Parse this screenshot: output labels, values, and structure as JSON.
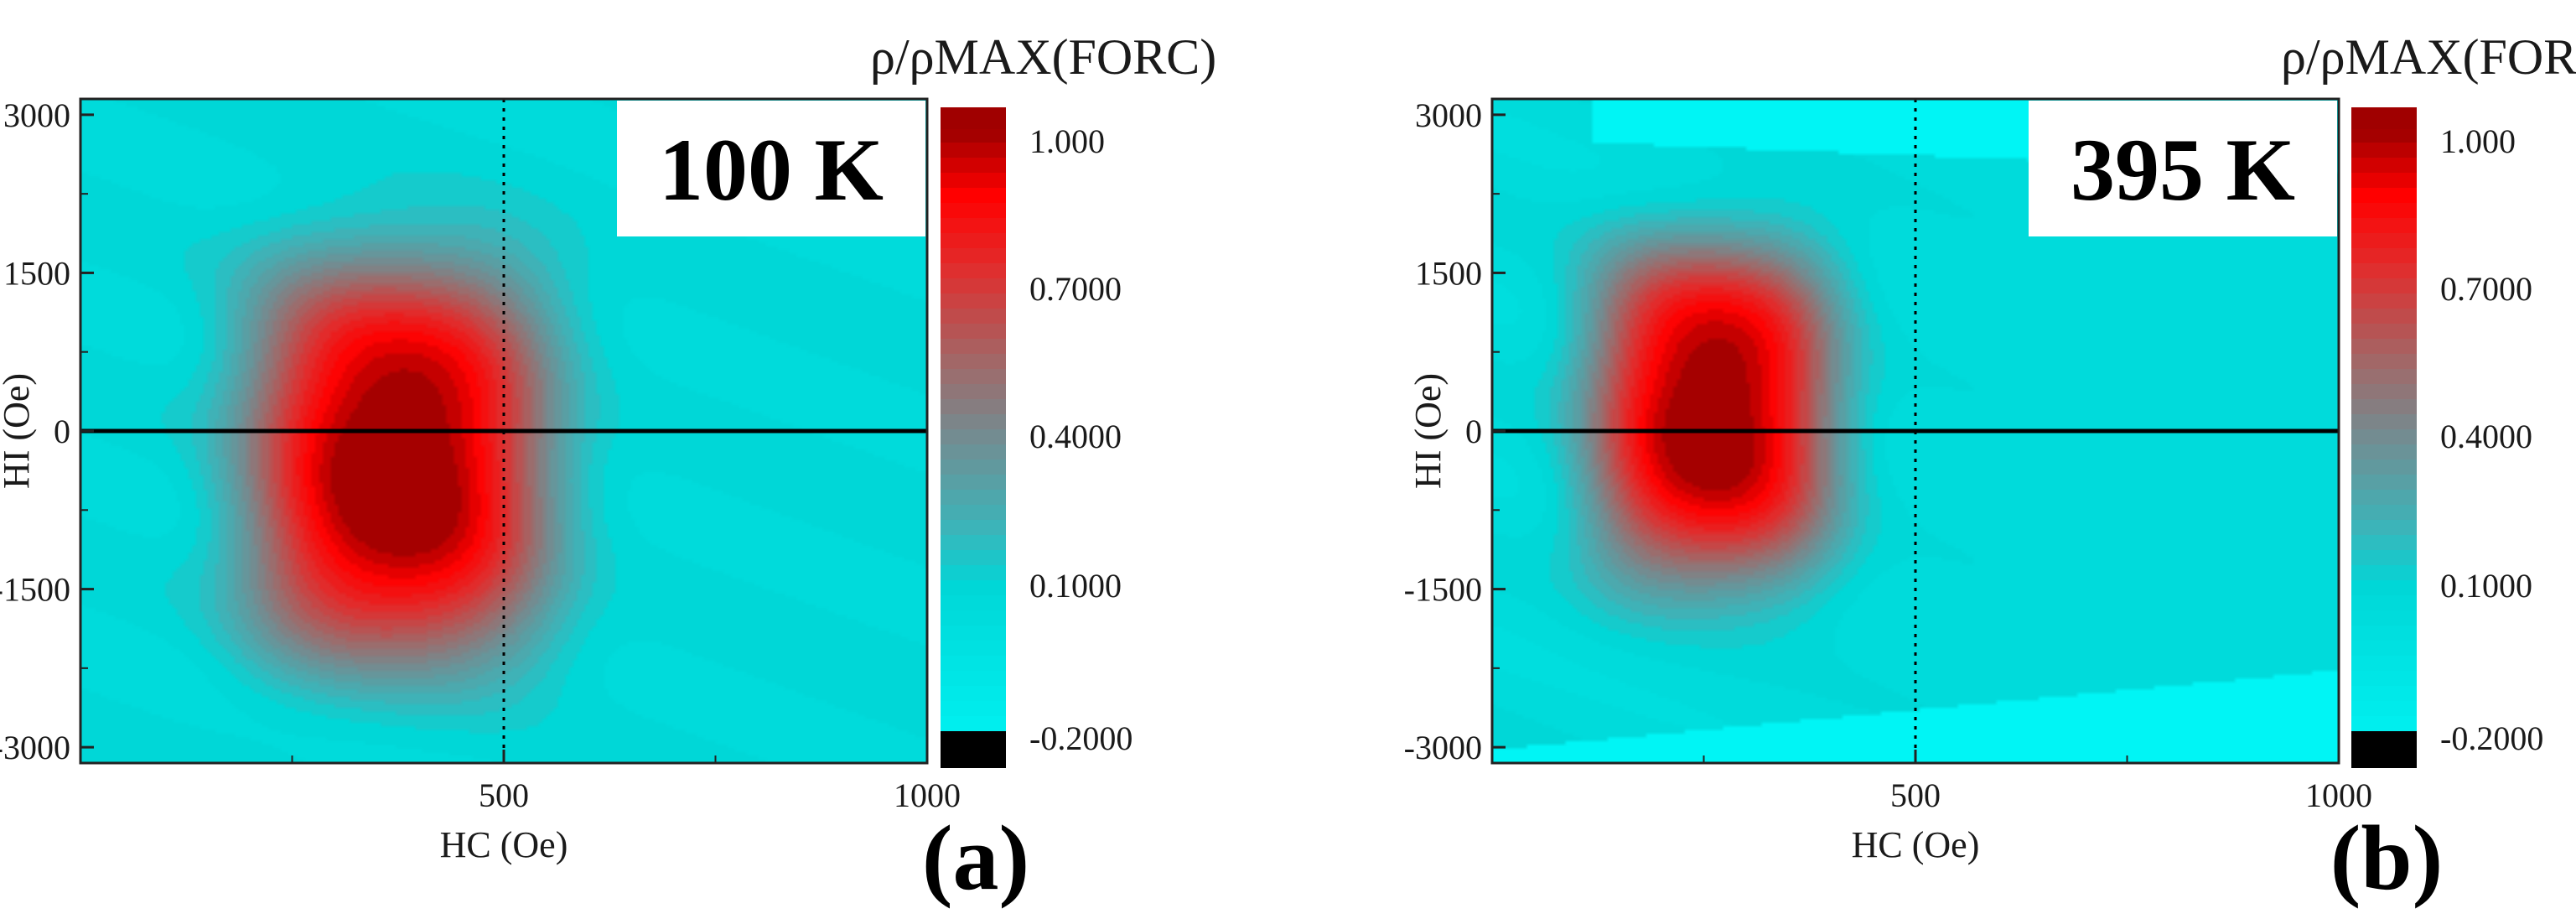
{
  "chart_data": [
    {
      "type": "heatmap",
      "panel_label": "(a)",
      "temperature_label": "100 K",
      "colorbar_title": "ρ/ρMAX(FORC)",
      "xlabel": "HC (Oe)",
      "ylabel": "HI (Oe)",
      "xlim": [
        0,
        1000
      ],
      "ylim": [
        -3150,
        3150
      ],
      "x_ticks": [
        500,
        1000
      ],
      "y_ticks": [
        3000,
        1500,
        0,
        -1500,
        -3000
      ],
      "colorbar_ticks": [
        "1.000",
        "0.7000",
        "0.4000",
        "0.1000",
        "-0.2000"
      ],
      "colorbar_range": [
        -0.2,
        1.0
      ],
      "reference_lines": {
        "horizontal_hi": 0,
        "vertical_hc_dotted": 500
      },
      "peaks": [
        {
          "hc": 375,
          "hi": -350,
          "amplitude": 1.0,
          "sigma_hc": 135,
          "sigma_hi_pos": 1550,
          "sigma_hi_neg": 1450
        }
      ],
      "background_level": 0.08
    },
    {
      "type": "heatmap",
      "panel_label": "(b)",
      "temperature_label": "395 K",
      "colorbar_title": "ρ/ρMAX(FORC)",
      "xlabel": "HC (Oe)",
      "ylabel": "HI (Oe)",
      "xlim": [
        0,
        1000
      ],
      "ylim": [
        -3150,
        3150
      ],
      "x_ticks": [
        500,
        1000
      ],
      "y_ticks": [
        3000,
        1500,
        0,
        -1500,
        -3000
      ],
      "colorbar_ticks": [
        "1.000",
        "0.7000",
        "0.4000",
        "0.1000",
        "-0.2000"
      ],
      "colorbar_range": [
        -0.2,
        1.0
      ],
      "reference_lines": {
        "horizontal_hi": 0,
        "vertical_hc_dotted": 500
      },
      "peaks": [
        {
          "hc": 260,
          "hi": 200,
          "amplitude": 1.0,
          "sigma_hc": 110,
          "sigma_hi_pos": 1250,
          "sigma_hi_neg": 1300
        }
      ],
      "background_level": 0.06,
      "empty_regions": [
        "top-right",
        "bottom-right"
      ]
    }
  ]
}
